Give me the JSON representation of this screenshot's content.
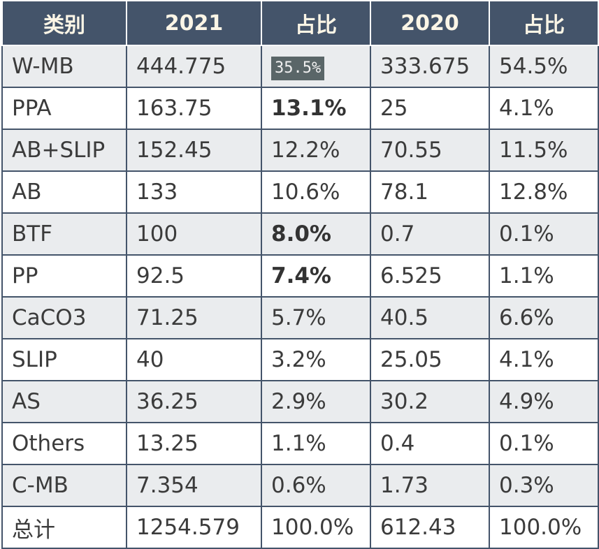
{
  "table": {
    "headers": [
      "类别",
      "2021",
      "占比",
      "2020",
      "占比"
    ],
    "rows": [
      {
        "category": "W-MB",
        "v2021": "444.775",
        "share2021": "35.5%",
        "v2020": "333.675",
        "share2020": "54.5%"
      },
      {
        "category": "PPA",
        "v2021": "163.75",
        "share2021": "13.1%",
        "v2020": "25",
        "share2020": "4.1%"
      },
      {
        "category": "AB+SLIP",
        "v2021": "152.45",
        "share2021": "12.2%",
        "v2020": "70.55",
        "share2020": "11.5%"
      },
      {
        "category": "AB",
        "v2021": "133",
        "share2021": "10.6%",
        "v2020": "78.1",
        "share2020": "12.8%"
      },
      {
        "category": "BTF",
        "v2021": "100",
        "share2021": "8.0%",
        "v2020": "0.7",
        "share2020": "0.1%"
      },
      {
        "category": "PP",
        "v2021": "92.5",
        "share2021": "7.4%",
        "v2020": "6.525",
        "share2020": "1.1%"
      },
      {
        "category": "CaCO3",
        "v2021": "71.25",
        "share2021": "5.7%",
        "v2020": "40.5",
        "share2020": "6.6%"
      },
      {
        "category": "SLIP",
        "v2021": "40",
        "share2021": "3.2%",
        "v2020": "25.05",
        "share2020": "4.1%"
      },
      {
        "category": "AS",
        "v2021": "36.25",
        "share2021": "2.9%",
        "v2020": "30.2",
        "share2020": "4.9%"
      },
      {
        "category": "Others",
        "v2021": "13.25",
        "share2021": "1.1%",
        "v2020": "0.4",
        "share2020": "0.1%"
      },
      {
        "category": "C-MB",
        "v2021": "7.354",
        "share2021": "0.6%",
        "v2020": "1.73",
        "share2020": "0.3%"
      },
      {
        "category": "总计",
        "v2021": "1254.579",
        "share2021": "100.0%",
        "v2020": "612.43",
        "share2020": "100.0%"
      }
    ]
  },
  "colors": {
    "header_bg": "#44546a",
    "header_text": "#fbf5e6",
    "row_stripe": "#eaecee",
    "border": "#44546a",
    "highlight_bg": "#5a6668"
  },
  "emphasis": {
    "highlighted_cell_row": 0,
    "bold_share2021_rows": [
      1,
      4,
      5
    ]
  }
}
